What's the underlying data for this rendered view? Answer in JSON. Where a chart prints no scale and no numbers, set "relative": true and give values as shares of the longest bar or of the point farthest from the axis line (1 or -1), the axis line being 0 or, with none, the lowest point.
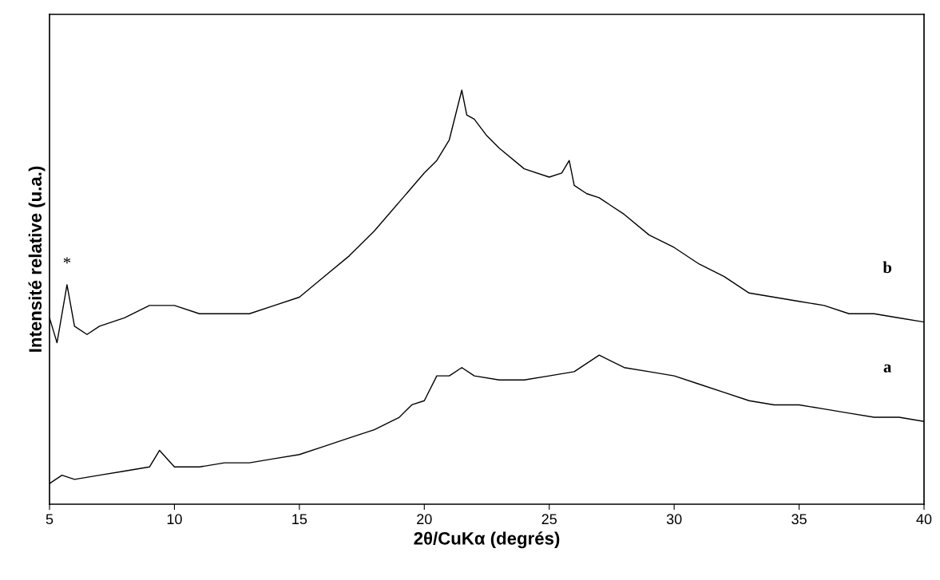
{
  "chart_data": {
    "type": "line",
    "relative": true,
    "xlabel": "2θ/CuKα (degrés)",
    "ylabel": "Intensité relative (u.a.)",
    "xlim": [
      5,
      40
    ],
    "xticks": [
      5,
      10,
      15,
      20,
      25,
      30,
      35,
      40
    ],
    "tick_labels": "x",
    "grid": false,
    "legend": false,
    "marker": "none",
    "line_style": "solid",
    "series": [
      {
        "name": "b",
        "color": "#000000",
        "x": [
          5,
          5.3,
          5.7,
          6,
          6.5,
          7,
          8,
          9,
          10,
          11,
          12,
          13,
          14,
          15,
          16,
          17,
          18,
          19,
          20,
          20.5,
          21,
          21.5,
          21.7,
          22,
          22.5,
          23,
          24,
          25,
          25.5,
          25.8,
          26,
          26.5,
          27,
          28,
          29,
          30,
          31,
          32,
          33,
          34,
          35,
          36,
          37,
          38,
          39,
          40
        ],
        "values": [
          0.45,
          0.39,
          0.53,
          0.43,
          0.41,
          0.43,
          0.45,
          0.48,
          0.48,
          0.46,
          0.46,
          0.46,
          0.48,
          0.5,
          0.55,
          0.6,
          0.66,
          0.73,
          0.8,
          0.83,
          0.88,
          1.0,
          0.94,
          0.93,
          0.89,
          0.86,
          0.81,
          0.79,
          0.8,
          0.83,
          0.77,
          0.75,
          0.74,
          0.7,
          0.65,
          0.62,
          0.58,
          0.55,
          0.51,
          0.5,
          0.49,
          0.48,
          0.46,
          0.46,
          0.45,
          0.44
        ]
      },
      {
        "name": "a",
        "color": "#000000",
        "x": [
          5,
          5.5,
          6,
          7,
          8,
          9,
          9.4,
          10,
          11,
          12,
          13,
          14,
          15,
          16,
          17,
          18,
          19,
          19.5,
          20,
          20.5,
          21,
          21.5,
          22,
          23,
          24,
          25,
          26,
          27,
          28,
          29,
          30,
          31,
          32,
          33,
          34,
          35,
          36,
          37,
          38,
          39,
          40
        ],
        "values": [
          0.05,
          0.07,
          0.06,
          0.07,
          0.08,
          0.09,
          0.13,
          0.09,
          0.09,
          0.1,
          0.1,
          0.11,
          0.12,
          0.14,
          0.16,
          0.18,
          0.21,
          0.24,
          0.25,
          0.31,
          0.31,
          0.33,
          0.31,
          0.3,
          0.3,
          0.31,
          0.32,
          0.36,
          0.33,
          0.32,
          0.31,
          0.29,
          0.27,
          0.25,
          0.24,
          0.24,
          0.23,
          0.22,
          0.21,
          0.21,
          0.2
        ]
      }
    ],
    "annotations": [
      "*"
    ]
  }
}
